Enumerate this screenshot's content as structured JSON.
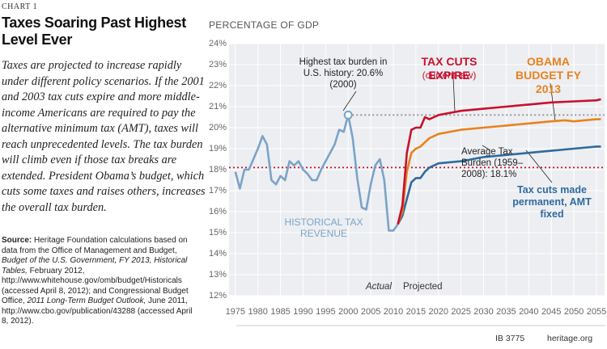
{
  "chart_label": "CHART 1",
  "title": "Taxes Soaring Past Highest Level Ever",
  "description": "Taxes are projected to increase rapidly under different policy scenarios. If the 2001 and 2003 tax cuts expire and more middle-income Americans are required to pay the alternative minimum tax (AMT), taxes will reach unprecedented levels. The tax burden will climb even if those tax breaks are extended. President Obama’s budget, which cuts some taxes and raises others, increases the overall tax burden.",
  "source": {
    "label": "Source:",
    "parts": [
      {
        "text": " Heritage Foundation calculations based on data from the Office of Management and Budget, ",
        "italic": false
      },
      {
        "text": "Budget of the U.S. Government, FY 2013, Historical Tables,",
        "italic": true
      },
      {
        "text": " February 2012, http://www.whitehouse.gov/omb/budget/Historicals (accessed April 8, 2012); and Congressional Budget Office, ",
        "italic": false
      },
      {
        "text": "2011 Long-Term Budget Outlook,",
        "italic": true
      },
      {
        "text": " June 2011, http://www.cbo.gov/publication/43288 (accessed April 8, 2012).",
        "italic": false
      }
    ]
  },
  "footer": {
    "id": "IB 3775",
    "site": "heritage.org"
  },
  "chart_data": {
    "type": "line",
    "y_label": "PERCENTAGE OF GDP",
    "xlim": [
      1973.6,
      2056.8
    ],
    "xticks": [
      1975,
      1980,
      1985,
      1990,
      1995,
      2000,
      2005,
      2010,
      2015,
      2020,
      2025,
      2030,
      2035,
      2040,
      2045,
      2050,
      2055
    ],
    "ylim": [
      12,
      24
    ],
    "yticks": [
      {
        "value": 12,
        "label": "12%"
      },
      {
        "value": 13,
        "label": "13%"
      },
      {
        "value": 14,
        "label": "14%"
      },
      {
        "value": 15,
        "label": "15%"
      },
      {
        "value": 16,
        "label": "16%"
      },
      {
        "value": 17,
        "label": "17%"
      },
      {
        "value": 18,
        "label": "18%"
      },
      {
        "value": 19,
        "label": "19%"
      },
      {
        "value": 20,
        "label": "20%"
      },
      {
        "value": 21,
        "label": "21%"
      },
      {
        "value": 22,
        "label": "22%"
      },
      {
        "value": 23,
        "label": "23%"
      },
      {
        "value": 24,
        "label": "24%"
      }
    ],
    "grid": true,
    "series": [
      {
        "name": "HISTORICAL TAX REVENUE",
        "color": "#7ba3c8",
        "x": [
          1975,
          1976,
          1977,
          1978,
          1979,
          1980,
          1981,
          1982,
          1983,
          1984,
          1985,
          1986,
          1987,
          1988,
          1989,
          1990,
          1991,
          1992,
          1993,
          1994,
          1995,
          1996,
          1997,
          1998,
          1999,
          2000,
          2001,
          2002,
          2003,
          2004,
          2005,
          2006,
          2007,
          2008,
          2009,
          2010,
          2011
        ],
        "values": [
          17.9,
          17.1,
          18.0,
          18.0,
          18.5,
          19.0,
          19.6,
          19.2,
          17.5,
          17.3,
          17.7,
          17.5,
          18.4,
          18.2,
          18.4,
          18.0,
          17.8,
          17.5,
          17.5,
          18.0,
          18.4,
          18.8,
          19.2,
          19.9,
          19.8,
          20.6,
          19.5,
          17.6,
          16.2,
          16.1,
          17.3,
          18.2,
          18.5,
          17.5,
          15.1,
          15.1,
          15.4
        ]
      },
      {
        "name": "TAX CUTS EXPIRE",
        "subtitle": "(current law)",
        "color": "#c8102e",
        "x": [
          2011,
          2012,
          2013,
          2014,
          2015,
          2016,
          2017,
          2018,
          2019,
          2020,
          2025,
          2030,
          2035,
          2040,
          2045,
          2050,
          2055,
          2056
        ],
        "values": [
          15.4,
          16.3,
          18.8,
          19.9,
          20.0,
          20.0,
          20.5,
          20.4,
          20.5,
          20.6,
          20.8,
          20.9,
          21.0,
          21.1,
          21.2,
          21.25,
          21.3,
          21.35
        ]
      },
      {
        "name": "OBAMA BUDGET FY 2013",
        "color": "#e8821e",
        "x": [
          2011,
          2012,
          2013,
          2014,
          2015,
          2016,
          2017,
          2018,
          2019,
          2020,
          2025,
          2030,
          2035,
          2040,
          2045,
          2048,
          2050,
          2055,
          2056
        ],
        "values": [
          15.4,
          16.0,
          17.9,
          18.8,
          19.0,
          19.1,
          19.3,
          19.5,
          19.6,
          19.7,
          19.9,
          20.0,
          20.1,
          20.2,
          20.3,
          20.35,
          20.3,
          20.4,
          20.4
        ]
      },
      {
        "name": "Tax cuts made permanent, AMT fixed",
        "color": "#2f6aa0",
        "x": [
          2011,
          2012,
          2013,
          2014,
          2015,
          2016,
          2017,
          2018,
          2019,
          2020,
          2025,
          2030,
          2035,
          2040,
          2045,
          2050,
          2055,
          2056
        ],
        "values": [
          15.4,
          15.8,
          16.6,
          17.4,
          17.6,
          17.6,
          17.9,
          18.1,
          18.2,
          18.3,
          18.4,
          18.6,
          18.7,
          18.8,
          18.9,
          19.0,
          19.1,
          19.1
        ]
      }
    ],
    "reference_lines": [
      {
        "value": 20.6,
        "from": 2000,
        "color": "#8a8f96"
      },
      {
        "value": 18.1,
        "color": "#c8102e"
      }
    ],
    "annotations": {
      "max": "Highest tax burden in U.S. history: 20.6% (2000)",
      "average": "Average Tax Burden (1959–2008): 18.1%",
      "actual": "Actual",
      "projected": "Projected"
    }
  }
}
